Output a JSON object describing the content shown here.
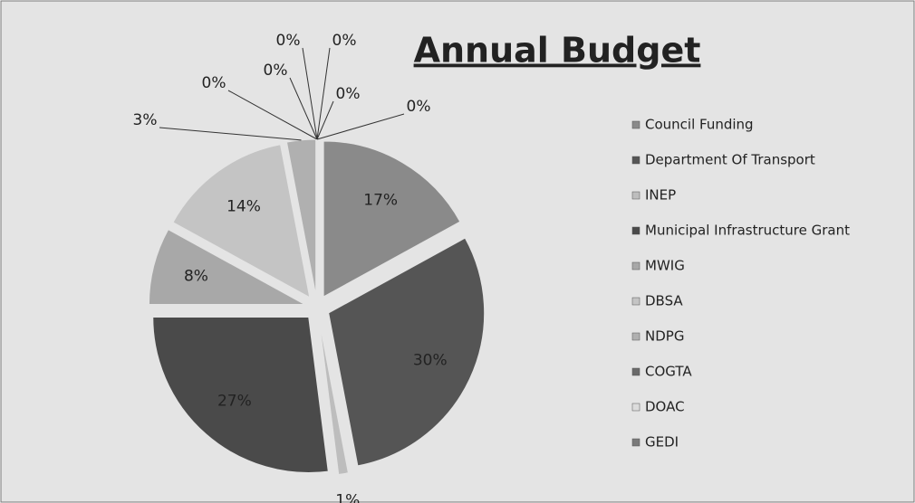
{
  "chart_data": {
    "type": "pie",
    "title": "Annual Budget",
    "categories": [
      "Council Funding",
      "Department Of Transport",
      "INEP",
      "Municipal Infrastructure Grant",
      "MWIG",
      "DBSA",
      "NDPG",
      "COGTA",
      "DOAC",
      "GEDI",
      null,
      null,
      null
    ],
    "values": [
      17,
      30,
      1,
      27,
      8,
      14,
      3,
      0,
      0,
      0,
      0,
      0,
      0
    ],
    "value_labels": [
      "17%",
      "30%",
      "1%",
      "27%",
      "8%",
      "14%",
      "3%",
      "0%",
      "0%",
      "0%",
      "0%",
      "0%",
      "0%"
    ],
    "colors": [
      "#8a8a8a",
      "#555555",
      "#bdbdbd",
      "#4a4a4a",
      "#a8a8a8",
      "#c4c4c4",
      "#b0b0b0",
      "#6a6a6a",
      "#dcdcdc",
      "#7a7a7a",
      "#999999",
      "#999999",
      "#999999"
    ],
    "legend": "right"
  }
}
